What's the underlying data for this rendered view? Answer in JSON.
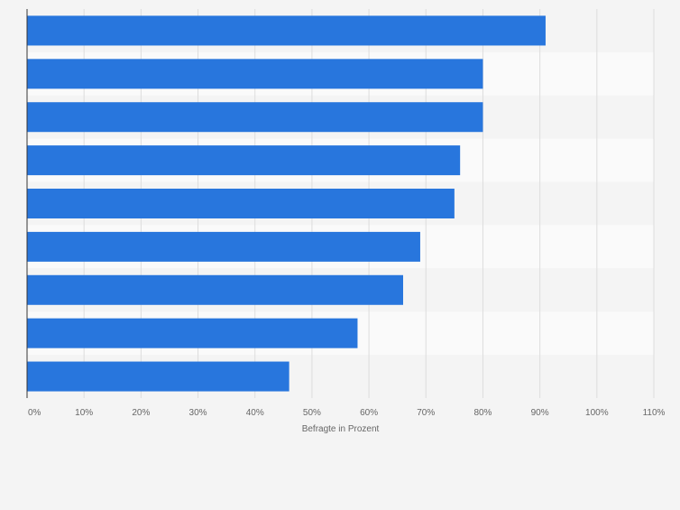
{
  "chart_data": {
    "type": "bar",
    "orientation": "horizontal",
    "title": "",
    "xlabel": "Befragte in Prozent",
    "ylabel": "",
    "xlim": [
      0,
      110
    ],
    "x_ticks": [
      "0%",
      "10%",
      "20%",
      "30%",
      "40%",
      "50%",
      "60%",
      "70%",
      "80%",
      "90%",
      "100%",
      "110%"
    ],
    "categories": [
      "",
      "",
      "",
      "",
      "",
      "",
      "",
      "",
      ""
    ],
    "values": [
      91,
      80,
      80,
      76,
      75,
      69,
      66,
      58,
      46
    ],
    "unit": "%",
    "grid": true,
    "legend": "none",
    "colors": {
      "bar": "#2876dd",
      "background": "#f4f4f4",
      "band_alt": "#fafafa",
      "grid": "#dddddd",
      "axis": "#333333",
      "tick_label": "#666666"
    }
  }
}
